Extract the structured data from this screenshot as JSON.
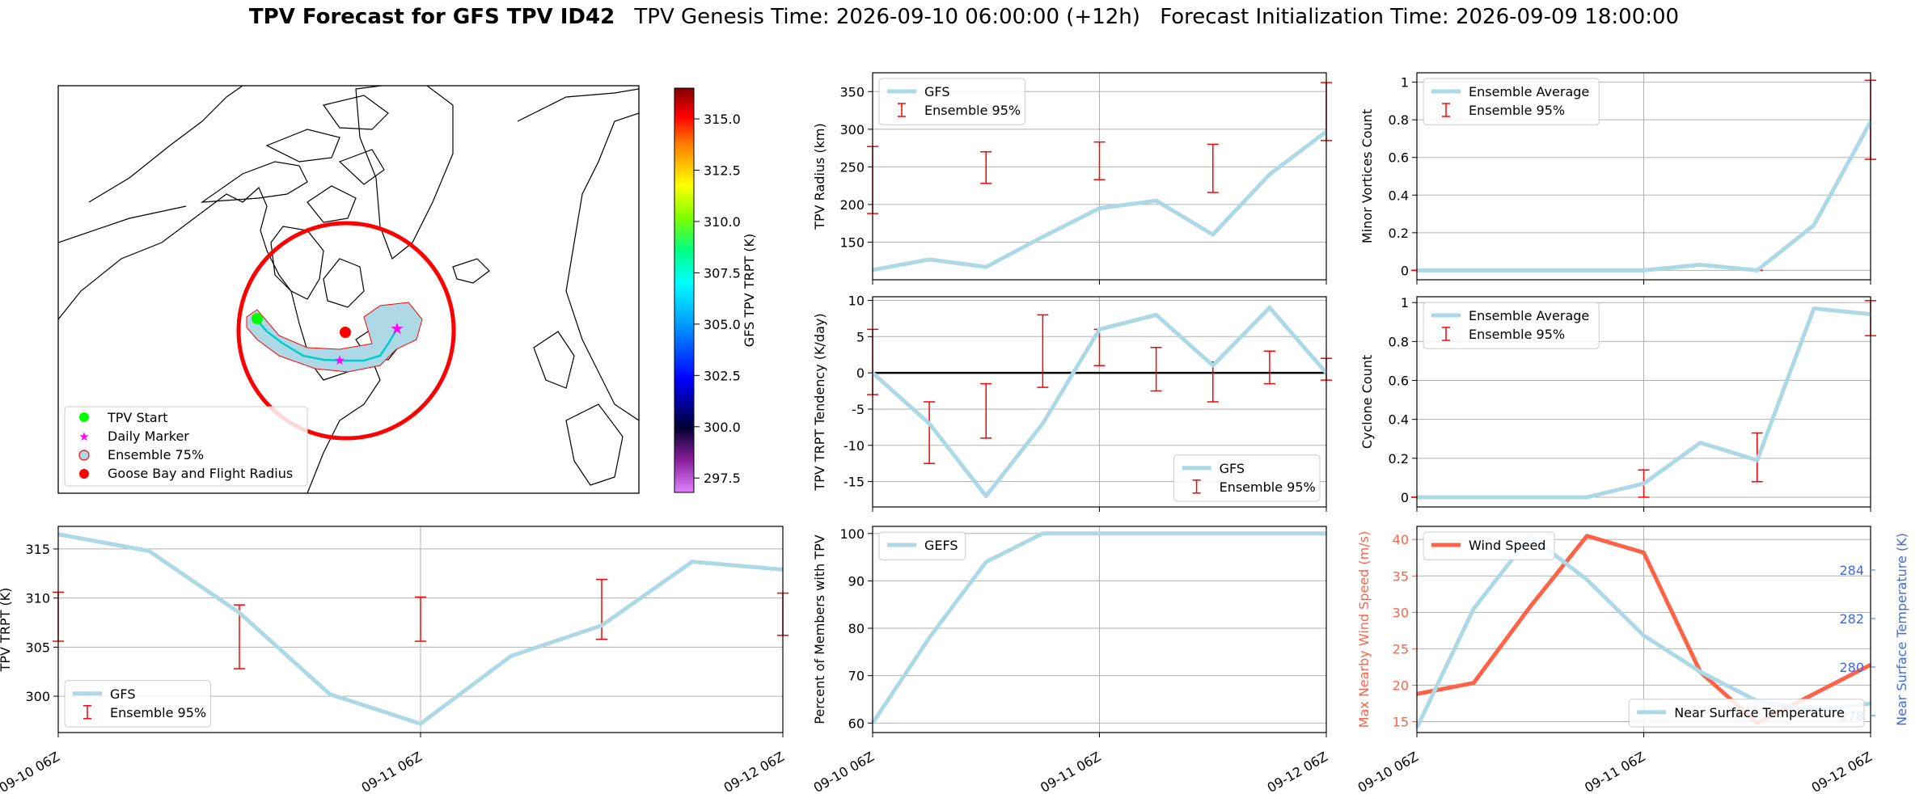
{
  "title": {
    "bold": "TPV Forecast for GFS TPV ID42",
    "genesis": "TPV Genesis Time: 2026-09-10 06:00:00 (+12h)",
    "init": "Forecast Initialization Time: 2026-09-09 18:00:00"
  },
  "colors": {
    "gfs_line": "#add8e6",
    "errorbar": "#ff0000",
    "wind": "#ff6347",
    "temp_axis": "#4169e1",
    "grid": "#b0b0b0"
  },
  "map": {
    "legend": [
      "TPV Start",
      "Daily Marker",
      "Ensemble 75%",
      "Goose Bay and Flight Radius"
    ],
    "colorbar": {
      "label": "GFS TPV TRPT (K)",
      "min": 296.8,
      "max": 316.5,
      "ticks": [
        "315.0",
        "312.5",
        "310.0",
        "307.5",
        "305.0",
        "302.5",
        "300.0",
        "297.5"
      ]
    }
  },
  "chart_data": [
    {
      "id": "radius",
      "type": "line",
      "ylabel": "TPV Radius (km)",
      "ylim": [
        100,
        375
      ],
      "yticks": [
        150,
        200,
        250,
        300,
        350
      ],
      "xlim": [
        0,
        8
      ],
      "x_gridlines": [
        4
      ],
      "xticks": [],
      "series": [
        {
          "name": "GFS",
          "x": [
            0,
            1,
            2,
            3,
            4,
            5,
            6,
            7,
            8
          ],
          "values": [
            113,
            127,
            117,
            157,
            195,
            205,
            160,
            240,
            297
          ]
        }
      ],
      "errorbars": {
        "name": "Ensemble 95%",
        "x": [
          0,
          2,
          4,
          6,
          8
        ],
        "low": [
          188,
          228,
          233,
          216,
          285
        ],
        "high": [
          277,
          270,
          283,
          280,
          362
        ]
      },
      "legend": [
        "GFS",
        "Ensemble 95%"
      ],
      "legend_position": "upper-left"
    },
    {
      "id": "tendency",
      "type": "line",
      "ylabel": "TPV TRPT Tendency (K/day)",
      "ylim": [
        -18.5,
        10.5
      ],
      "yticks": [
        -15,
        -10,
        -5,
        0,
        5,
        10
      ],
      "xlim": [
        0,
        8
      ],
      "x_gridlines": [
        4
      ],
      "xticks": [],
      "zero_line": true,
      "series": [
        {
          "name": "GFS",
          "x": [
            0,
            1,
            2,
            3,
            4,
            5,
            6,
            7,
            8
          ],
          "values": [
            0,
            -7,
            -17,
            -7,
            6,
            8,
            1,
            9,
            0
          ]
        }
      ],
      "errorbars": {
        "name": "Ensemble 95%",
        "x": [
          0,
          1,
          2,
          3,
          4,
          5,
          6,
          7,
          8
        ],
        "low": [
          -3,
          -12.5,
          -9,
          -2,
          1,
          -2.5,
          -4,
          -1.5,
          -1
        ],
        "high": [
          6,
          -4,
          -1.5,
          8,
          6,
          3.5,
          1.5,
          3,
          2
        ]
      },
      "legend": [
        "GFS",
        "Ensemble 95%"
      ],
      "legend_position": "lower-right"
    },
    {
      "id": "trpt",
      "type": "line",
      "ylabel": "TPV TRPT (K)",
      "ylim": [
        296.3,
        317.3
      ],
      "yticks": [
        300,
        305,
        310,
        315
      ],
      "xlim": [
        0,
        8
      ],
      "x_gridlines": [
        4
      ],
      "xticks": [
        {
          "x": 0,
          "label": "09-10 06Z"
        },
        {
          "x": 4,
          "label": "09-11 06Z"
        },
        {
          "x": 8,
          "label": "09-12 06Z"
        }
      ],
      "series": [
        {
          "name": "GFS",
          "x": [
            0,
            1,
            2,
            3,
            4,
            5,
            6,
            7,
            8
          ],
          "values": [
            316.5,
            314.8,
            308.5,
            300.2,
            297.2,
            304.1,
            307.2,
            313.7,
            312.9
          ]
        }
      ],
      "errorbars": {
        "name": "Ensemble 95%",
        "x": [
          0,
          2,
          4,
          6,
          8
        ],
        "low": [
          305.6,
          302.8,
          305.6,
          305.8,
          306.2
        ],
        "high": [
          310.6,
          309.3,
          310.1,
          311.9,
          310.5
        ]
      },
      "legend": [
        "GFS",
        "Ensemble 95%"
      ],
      "legend_position": "lower-left"
    },
    {
      "id": "members",
      "type": "line",
      "ylabel": "Percent of Members with TPV",
      "ylim": [
        58,
        101.5
      ],
      "yticks": [
        60,
        70,
        80,
        90,
        100
      ],
      "xlim": [
        0,
        8
      ],
      "x_gridlines": [
        4
      ],
      "xticks": [
        {
          "x": 0,
          "label": "09-10 06Z"
        },
        {
          "x": 4,
          "label": "09-11 06Z"
        },
        {
          "x": 8,
          "label": "09-12 06Z"
        }
      ],
      "series": [
        {
          "name": "GEFS",
          "x": [
            0,
            1,
            2,
            3,
            4,
            5,
            6,
            7,
            8
          ],
          "values": [
            60,
            78,
            94,
            100,
            100,
            100,
            100,
            100,
            100
          ]
        }
      ],
      "legend": [
        "GEFS"
      ],
      "legend_position": "upper-left"
    },
    {
      "id": "minor",
      "type": "line",
      "ylabel": "Minor Vortices Count",
      "ylim": [
        -0.05,
        1.05
      ],
      "yticks": [
        0.0,
        0.2,
        0.4,
        0.6,
        0.8,
        1.0
      ],
      "xlim": [
        0,
        8
      ],
      "x_gridlines": [
        4
      ],
      "xticks": [],
      "series": [
        {
          "name": "Ensemble Average",
          "x": [
            0,
            1,
            2,
            3,
            4,
            5,
            6,
            7,
            8
          ],
          "values": [
            0,
            0,
            0,
            0,
            0,
            0.03,
            0,
            0.24,
            0.79
          ]
        }
      ],
      "errorbars": {
        "name": "Ensemble 95%",
        "x": [
          0,
          2,
          4,
          6,
          8
        ],
        "low": [
          0,
          0,
          0,
          0,
          0.59
        ],
        "high": [
          0,
          0,
          0,
          0,
          1.01
        ]
      },
      "legend": [
        "Ensemble Average",
        "Ensemble 95%"
      ],
      "legend_position": "upper-left"
    },
    {
      "id": "cyclone",
      "type": "line",
      "ylabel": "Cyclone Count",
      "ylim": [
        -0.05,
        1.03
      ],
      "yticks": [
        0.0,
        0.2,
        0.4,
        0.6,
        0.8,
        1.0
      ],
      "xlim": [
        0,
        8
      ],
      "x_gridlines": [
        4
      ],
      "xticks": [],
      "series": [
        {
          "name": "Ensemble Average",
          "x": [
            0,
            1,
            2,
            3,
            4,
            5,
            6,
            7,
            8
          ],
          "values": [
            0,
            0,
            0,
            0,
            0.07,
            0.28,
            0.19,
            0.97,
            0.94
          ]
        }
      ],
      "errorbars": {
        "name": "Ensemble 95%",
        "x": [
          0,
          2,
          4,
          6,
          8
        ],
        "low": [
          0,
          0,
          0,
          0.08,
          0.83
        ],
        "high": [
          0,
          0,
          0.14,
          0.33,
          1.01
        ]
      },
      "legend": [
        "Ensemble Average",
        "Ensemble 95%"
      ],
      "legend_position": "upper-left"
    },
    {
      "id": "wind_temp",
      "type": "line",
      "ylabel": "Max Nearby Wind Speed (m/s)",
      "ylabel_right": "Near Surface Temperature (K)",
      "ylim": [
        13.5,
        41.8
      ],
      "yticks": [
        15,
        20,
        25,
        30,
        35,
        40
      ],
      "ylim_right": [
        277.3,
        285.8
      ],
      "yticks_right": [
        278,
        280,
        282,
        284
      ],
      "xlim": [
        0,
        8
      ],
      "x_gridlines": [
        4
      ],
      "xticks": [
        {
          "x": 0,
          "label": "09-10 06Z"
        },
        {
          "x": 4,
          "label": "09-11 06Z"
        },
        {
          "x": 8,
          "label": "09-12 06Z"
        }
      ],
      "series": [
        {
          "name": "Wind Speed",
          "axis": "left",
          "x": [
            0,
            1,
            2,
            3,
            4,
            5,
            6,
            7,
            8
          ],
          "values": [
            18.8,
            20.3,
            30.8,
            40.5,
            38.2,
            21.8,
            14.8,
            18.8,
            22.8
          ]
        },
        {
          "name": "Near Surface Temperature",
          "axis": "right",
          "x": [
            0,
            1,
            2,
            3,
            4,
            5,
            6,
            7,
            8
          ],
          "values": [
            277.5,
            282.4,
            285.4,
            283.6,
            281.3,
            279.8,
            278.6,
            278.2,
            278.5
          ]
        }
      ],
      "legend": [
        "Wind Speed"
      ],
      "legend_right": [
        "Near Surface Temperature"
      ],
      "legend_position": "upper-left"
    }
  ]
}
